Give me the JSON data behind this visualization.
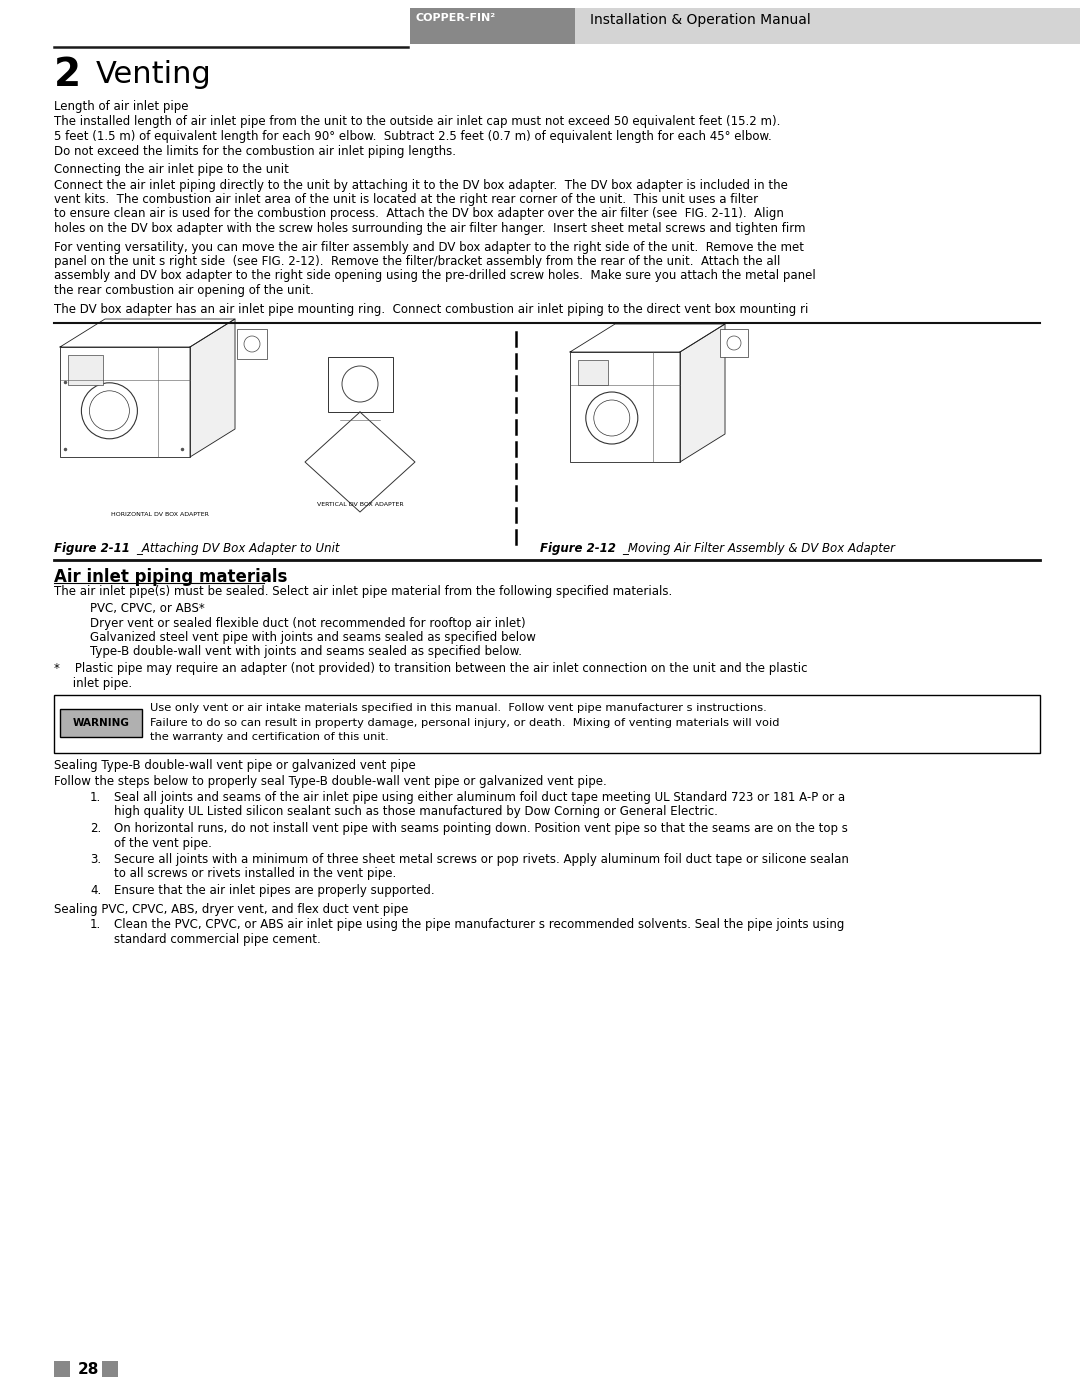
{
  "page_width": 10.8,
  "page_height": 13.97,
  "dpi": 100,
  "bg_color": "#ffffff",
  "header_bg": "#d4d4d4",
  "header_text": "Installation & Operation Manual",
  "header_brand": "COPPER-FIN²",
  "header_brand_bg": "#888888",
  "line_color": "#1a1a1a",
  "warning_bg": "#b0b0b0",
  "page_number": "28",
  "fig11_caption_bold": "Figure 2-11",
  "fig11_caption_rest": "_Attaching DV Box Adapter to Unit",
  "fig12_caption_bold": "Figure 2-12",
  "fig12_caption_rest": "_Moving Air Filter Assembly & DV Box Adapter"
}
